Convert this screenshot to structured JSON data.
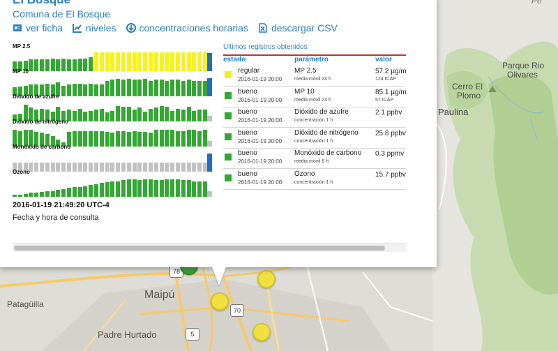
{
  "map": {
    "labels": {
      "patagilla": "Patagüilla",
      "maipu": "Maipú",
      "padre_hurtado": "Padre Hurtado",
      "paulina": "Paulina",
      "cerro_plomo_1": "Cerro El",
      "cerro_plomo_2": "Plomo",
      "parque_1": "Parque Rio",
      "parque_2": "Olivares",
      "corner": "Pe"
    },
    "shields": {
      "s78": "78",
      "s70": "70",
      "s5": "5"
    }
  },
  "popup": {
    "title": "El Bosque",
    "subtitle": "Comuna de El Bosque",
    "links": {
      "ver_ficha": "ver ficha",
      "niveles": "niveles",
      "concentraciones": "concentraciones horarias",
      "descargar": "descargar CSV"
    },
    "params": [
      {
        "label": "MP 2.5",
        "bars": [
          "g",
          "g",
          "g",
          "g",
          "g",
          "g",
          "g",
          "g",
          "g",
          "g",
          "g",
          "g",
          "g",
          "g",
          "g",
          "y",
          "y",
          "y",
          "y",
          "y",
          "y",
          "y",
          "y",
          "y",
          "y",
          "y",
          "y",
          "y",
          "y",
          "y",
          "y",
          "y",
          "y",
          "y",
          "y",
          "y"
        ],
        "levels": [
          0.5,
          0.5,
          0.55,
          0.6,
          0.6,
          0.62,
          0.6,
          0.65,
          0.6,
          0.65,
          0.62,
          0.6,
          0.65,
          0.65,
          0.7,
          0.95,
          0.95,
          0.95,
          0.95,
          0.95,
          0.95,
          0.95,
          0.95,
          0.95,
          0.95,
          0.95,
          0.95,
          0.95,
          0.95,
          0.95,
          0.95,
          0.95,
          0.95,
          0.95,
          0.95,
          0.95
        ],
        "end": "b"
      },
      {
        "label": "MP 10",
        "bars": [
          "g",
          "g",
          "g",
          "g",
          "g",
          "g",
          "g",
          "g",
          "g",
          "g",
          "g",
          "g",
          "g",
          "g",
          "g",
          "g",
          "g",
          "g",
          "g",
          "g",
          "g",
          "g",
          "g",
          "g",
          "g",
          "g",
          "g",
          "g",
          "g",
          "g",
          "g",
          "g",
          "g",
          "g",
          "g",
          "g"
        ],
        "levels": [
          0.45,
          0.5,
          0.55,
          0.6,
          0.62,
          0.6,
          0.65,
          0.6,
          0.7,
          0.55,
          0.6,
          0.65,
          0.65,
          0.6,
          0.65,
          0.62,
          0.6,
          0.8,
          0.85,
          0.9,
          0.85,
          0.9,
          0.85,
          0.85,
          0.9,
          0.8,
          0.85,
          0.85,
          0.8,
          0.85,
          0.85,
          0.8,
          0.85,
          0.8,
          0.8,
          0.8
        ],
        "end": "b"
      },
      {
        "label": "Dióxido de azufre",
        "bars": [
          "g",
          "g",
          "g",
          "g",
          "g",
          "g",
          "g",
          "g",
          "g",
          "g",
          "g",
          "g",
          "g",
          "g",
          "g",
          "g",
          "g",
          "g",
          "g",
          "g",
          "g",
          "g",
          "g",
          "g",
          "g",
          "g",
          "g",
          "g",
          "g",
          "g",
          "g",
          "g",
          "g",
          "g",
          "g",
          "g"
        ],
        "levels": [
          0.35,
          0.4,
          0.85,
          0.7,
          0.6,
          0.65,
          0.6,
          0.5,
          0.75,
          0.55,
          0.6,
          0.55,
          0.65,
          0.5,
          0.55,
          0.6,
          0.65,
          0.45,
          0.55,
          0.8,
          0.75,
          0.75,
          0.6,
          0.7,
          0.5,
          0.65,
          0.7,
          0.8,
          0.75,
          0.55,
          0.65,
          0.6,
          0.75,
          0.55,
          0.6,
          0.6
        ],
        "end": "gr"
      },
      {
        "label": "Dióxido de nitrógeno",
        "bars": [
          "g",
          "g",
          "g",
          "g",
          "g",
          "g",
          "g",
          "g",
          "g",
          "g",
          "g",
          "g",
          "g",
          "g",
          "g",
          "g",
          "g",
          "g",
          "g",
          "g",
          "g",
          "g",
          "g",
          "g",
          "g",
          "g",
          "g",
          "g",
          "g",
          "g",
          "g",
          "g",
          "g",
          "g",
          "g",
          "g"
        ],
        "levels": [
          0.85,
          0.8,
          0.85,
          0.85,
          0.75,
          0.7,
          0.65,
          0.55,
          0.35,
          0.2,
          0.75,
          0.8,
          0.8,
          0.8,
          0.8,
          0.8,
          0.8,
          0.75,
          0.7,
          0.8,
          0.8,
          0.75,
          0.8,
          0.75,
          0.75,
          0.7,
          0.85,
          0.85,
          0.85,
          0.85,
          0.8,
          0.8,
          0.85,
          0.85,
          0.8,
          0.85
        ],
        "end": "gr"
      },
      {
        "label": "Monóxido de carbono",
        "bars": [
          "gr",
          "gr",
          "gr",
          "gr",
          "gr",
          "gr",
          "gr",
          "gr",
          "gr",
          "gr",
          "gr",
          "gr",
          "gr",
          "gr",
          "gr",
          "gr",
          "gr",
          "gr",
          "gr",
          "gr",
          "gr",
          "gr",
          "gr",
          "gr",
          "gr",
          "gr",
          "gr",
          "gr",
          "gr",
          "gr",
          "gr",
          "gr",
          "gr",
          "gr",
          "gr",
          "gr"
        ],
        "levels": [
          0.45,
          0.45,
          0.45,
          0.45,
          0.45,
          0.45,
          0.45,
          0.45,
          0.45,
          0.45,
          0.45,
          0.45,
          0.45,
          0.45,
          0.45,
          0.45,
          0.45,
          0.45,
          0.45,
          0.45,
          0.45,
          0.45,
          0.45,
          0.45,
          0.45,
          0.45,
          0.45,
          0.45,
          0.45,
          0.45,
          0.45,
          0.45,
          0.45,
          0.45,
          0.45,
          0.45
        ],
        "end": "b"
      },
      {
        "label": "Ozono",
        "bars": [
          "g",
          "g",
          "g",
          "g",
          "g",
          "g",
          "g",
          "g",
          "g",
          "g",
          "g",
          "g",
          "g",
          "g",
          "g",
          "g",
          "g",
          "g",
          "g",
          "g",
          "g",
          "g",
          "g",
          "g",
          "g",
          "g",
          "g",
          "g",
          "g",
          "g",
          "g",
          "g",
          "g",
          "g",
          "g",
          "g"
        ],
        "levels": [
          0.1,
          0.1,
          0.15,
          0.2,
          0.2,
          0.25,
          0.3,
          0.3,
          0.35,
          0.4,
          0.45,
          0.5,
          0.5,
          0.55,
          0.6,
          0.65,
          0.7,
          0.75,
          0.8,
          0.8,
          0.85,
          0.9,
          0.9,
          0.85,
          0.9,
          0.9,
          0.85,
          0.85,
          0.9,
          0.9,
          0.9,
          0.85,
          0.85,
          0.8,
          0.8,
          0.8
        ],
        "end": "gr"
      }
    ],
    "table": {
      "heading": "Últimos registros obtenidos",
      "cols": {
        "estado": "estado",
        "parametro": "parámetro",
        "valor": "valor"
      },
      "rows": [
        {
          "color": "#f2ef1f",
          "estado": "regular",
          "fecha": "2016-01-19 20:00",
          "parametro": "MP 2.5",
          "agregacion": "media móvil 24 h",
          "valor": "57.2 µg/m³",
          "icap": "124 ICAP"
        },
        {
          "color": "#33a832",
          "estado": "bueno",
          "fecha": "2016-01-19 20:00",
          "parametro": "MP 10",
          "agregacion": "media móvil 24 h",
          "valor": "85.1 µg/m³",
          "icap": "57 ICAP"
        },
        {
          "color": "#33a832",
          "estado": "bueno",
          "fecha": "2016-01-19 20:00",
          "parametro": "Dióxido de azufre",
          "agregacion": "concentración 1 h",
          "valor": "2.1 ppbv",
          "icap": ""
        },
        {
          "color": "#33a832",
          "estado": "bueno",
          "fecha": "2016-01-19 20:00",
          "parametro": "Dióxido de nitrógeno",
          "agregacion": "concentración 1 h",
          "valor": "25.8 ppbv",
          "icap": ""
        },
        {
          "color": "#33a832",
          "estado": "bueno",
          "fecha": "2016-01-19 20:00",
          "parametro": "Monóxido de carbono",
          "agregacion": "media móvil 8 h",
          "valor": "0.3 ppmv",
          "icap": ""
        },
        {
          "color": "#33a832",
          "estado": "bueno",
          "fecha": "2016-01-19 20:00",
          "parametro": "Ozono",
          "agregacion": "concentración 1 h",
          "valor": "15.7 ppbv",
          "icap": ""
        }
      ]
    },
    "timestamp": "2016-01-19 21:49:20 UTC-4",
    "timestamp_label": "Fecha y hora de consulta"
  },
  "colors": {
    "g": "#33a832",
    "y": "#f7f21f",
    "gr": "#c2c2c2",
    "b": "#1f6fc1",
    "link": "#2a7ec4"
  },
  "icons": [
    "id-card-icon",
    "chart-icon",
    "download-circle-icon",
    "file-excel-icon"
  ]
}
